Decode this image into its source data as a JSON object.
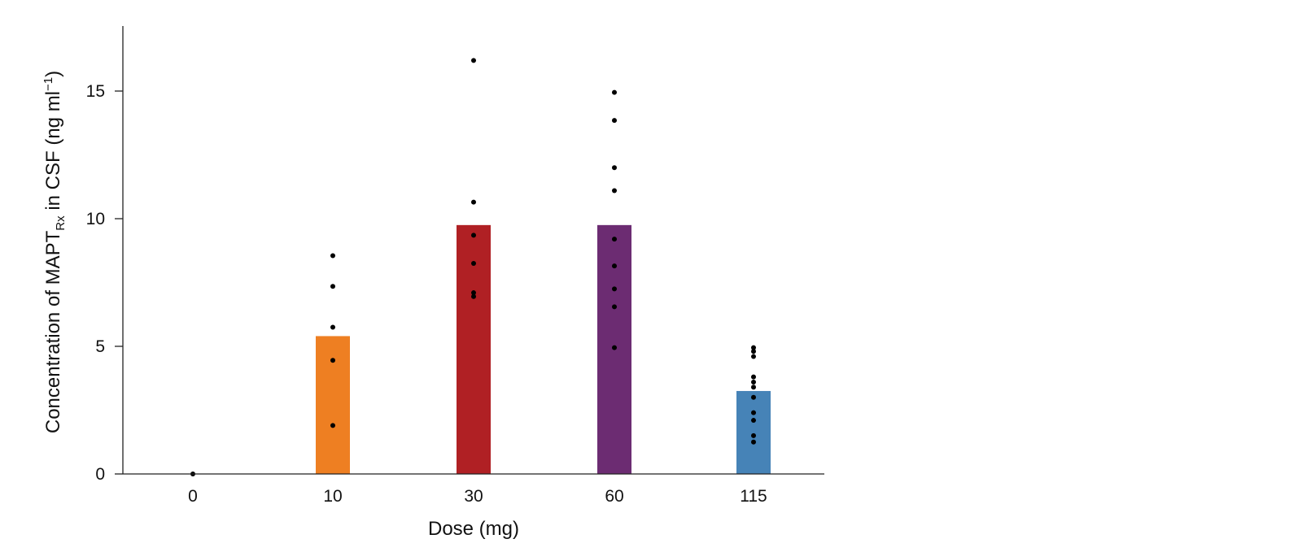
{
  "chart_data": {
    "type": "bar",
    "xlabel": "Dose (mg)",
    "ylabel": {
      "prefix": "Concentration of MAPT",
      "subscript": "Rx",
      "middle": " in CSF (ng ml",
      "superscript": "−1",
      "suffix": ")"
    },
    "categories": [
      "0",
      "10",
      "30",
      "60",
      "115"
    ],
    "values": [
      0,
      5.4,
      9.75,
      9.75,
      3.25
    ],
    "bar_colors": [
      "#ffffff",
      "#ee7f22",
      "#b02024",
      "#6c2c72",
      "#4683b7"
    ],
    "points": [
      [
        0
      ],
      [
        8.55,
        7.35,
        5.75,
        4.45,
        1.9
      ],
      [
        16.2,
        10.65,
        9.35,
        8.25,
        7.1,
        6.95
      ],
      [
        14.95,
        13.85,
        12.0,
        11.1,
        9.2,
        8.15,
        7.25,
        6.55,
        4.95
      ],
      [
        4.95,
        4.8,
        4.6,
        3.8,
        3.6,
        3.4,
        3.0,
        2.4,
        2.1,
        1.5,
        1.25
      ]
    ],
    "point_color": "#000000",
    "yticks": [
      0,
      5,
      10,
      15
    ],
    "ylim": [
      0,
      17.5
    ],
    "grid": false,
    "legend": "none"
  }
}
